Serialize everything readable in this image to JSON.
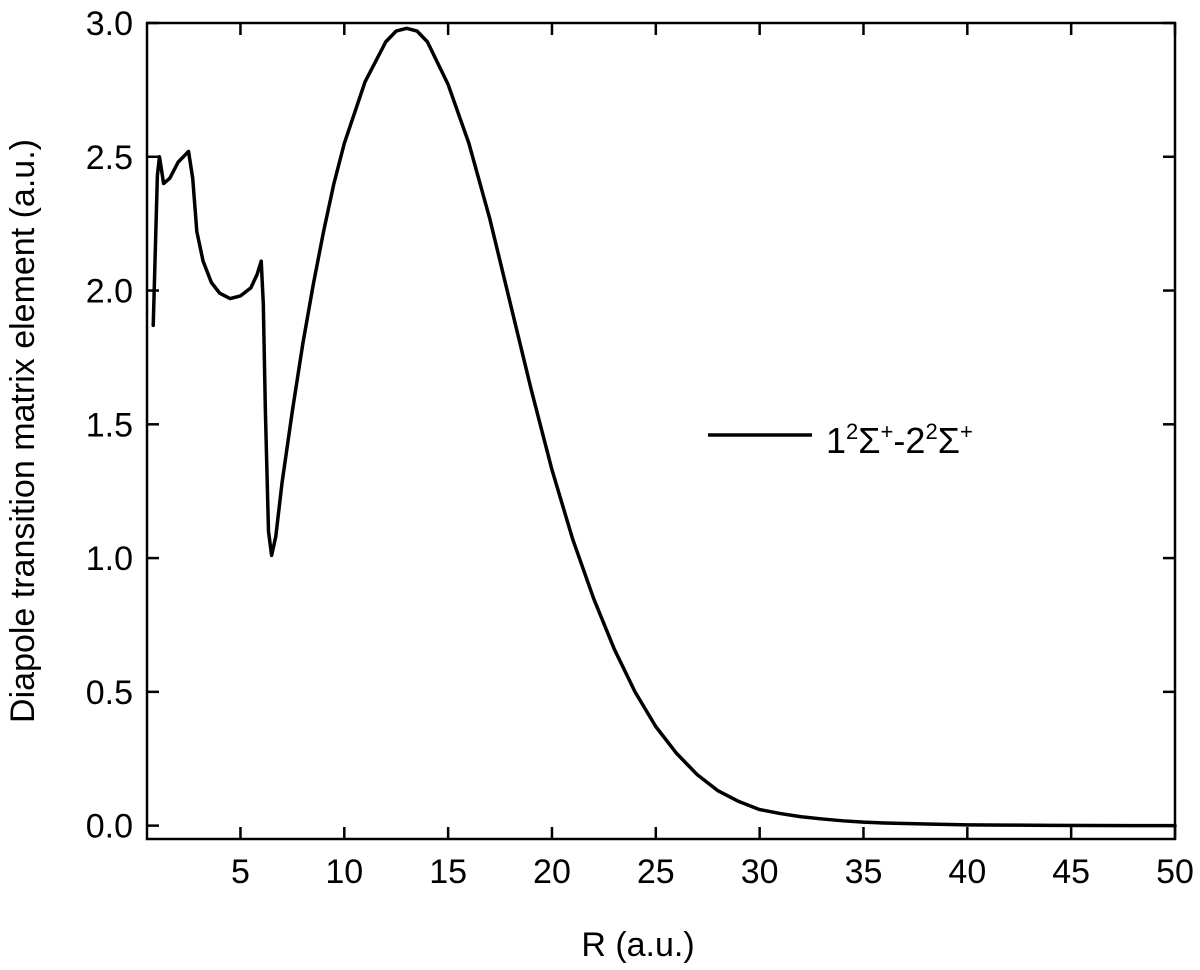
{
  "chart_data": {
    "type": "line",
    "title": "",
    "xlabel": "R (a.u.)",
    "ylabel": "Diapole transition matrix element (a.u.)",
    "xlim": [
      0.5,
      50
    ],
    "ylim": [
      -0.05,
      3.0
    ],
    "x_ticks": [
      5,
      10,
      15,
      20,
      25,
      30,
      35,
      40,
      45,
      50
    ],
    "x_tick_labels": [
      "5",
      "10",
      "15",
      "20",
      "25",
      "30",
      "35",
      "40",
      "45",
      "50"
    ],
    "y_ticks": [
      0.0,
      0.5,
      1.0,
      1.5,
      2.0,
      2.5,
      3.0
    ],
    "y_tick_labels": [
      "0.0",
      "0.5",
      "1.0",
      "1.5",
      "2.0",
      "2.5",
      "3.0"
    ],
    "grid": false,
    "legend_position": "right-middle",
    "line_color": "#000000",
    "legend": {
      "n1": "1",
      "sup1": "2",
      "sym1": "Σ",
      "sup2": "+",
      "sep": "-",
      "n2": "2",
      "sup3": "2",
      "sym2": "Σ",
      "sup4": "+"
    },
    "series": [
      {
        "name": "1²Σ⁺-2²Σ⁺",
        "x": [
          0.8,
          1.0,
          1.1,
          1.3,
          1.6,
          2.0,
          2.5,
          2.7,
          2.9,
          3.2,
          3.6,
          4.0,
          4.5,
          5.0,
          5.5,
          5.8,
          6.0,
          6.1,
          6.2,
          6.35,
          6.5,
          6.7,
          7.0,
          7.5,
          8.0,
          8.5,
          9.0,
          9.5,
          10.0,
          11.0,
          12.0,
          12.5,
          13.0,
          13.5,
          14.0,
          15.0,
          16.0,
          17.0,
          18.0,
          19.0,
          20.0,
          21.0,
          22.0,
          23.0,
          24.0,
          25.0,
          26.0,
          27.0,
          28.0,
          29.0,
          30.0,
          31.0,
          32.0,
          33.0,
          34.0,
          35.0,
          36.0,
          38.0,
          40.0,
          42.0,
          44.0,
          46.0,
          48.0,
          50.0
        ],
        "y": [
          1.87,
          2.43,
          2.5,
          2.4,
          2.42,
          2.48,
          2.52,
          2.42,
          2.22,
          2.11,
          2.03,
          1.99,
          1.97,
          1.98,
          2.01,
          2.06,
          2.11,
          1.95,
          1.55,
          1.1,
          1.01,
          1.08,
          1.28,
          1.55,
          1.8,
          2.02,
          2.22,
          2.4,
          2.55,
          2.78,
          2.93,
          2.97,
          2.98,
          2.97,
          2.93,
          2.77,
          2.55,
          2.27,
          1.95,
          1.63,
          1.33,
          1.07,
          0.85,
          0.66,
          0.5,
          0.37,
          0.27,
          0.19,
          0.13,
          0.09,
          0.06,
          0.045,
          0.033,
          0.025,
          0.018,
          0.013,
          0.01,
          0.006,
          0.003,
          0.002,
          0.001,
          0.0005,
          0.0002,
          0.0001
        ]
      }
    ]
  }
}
